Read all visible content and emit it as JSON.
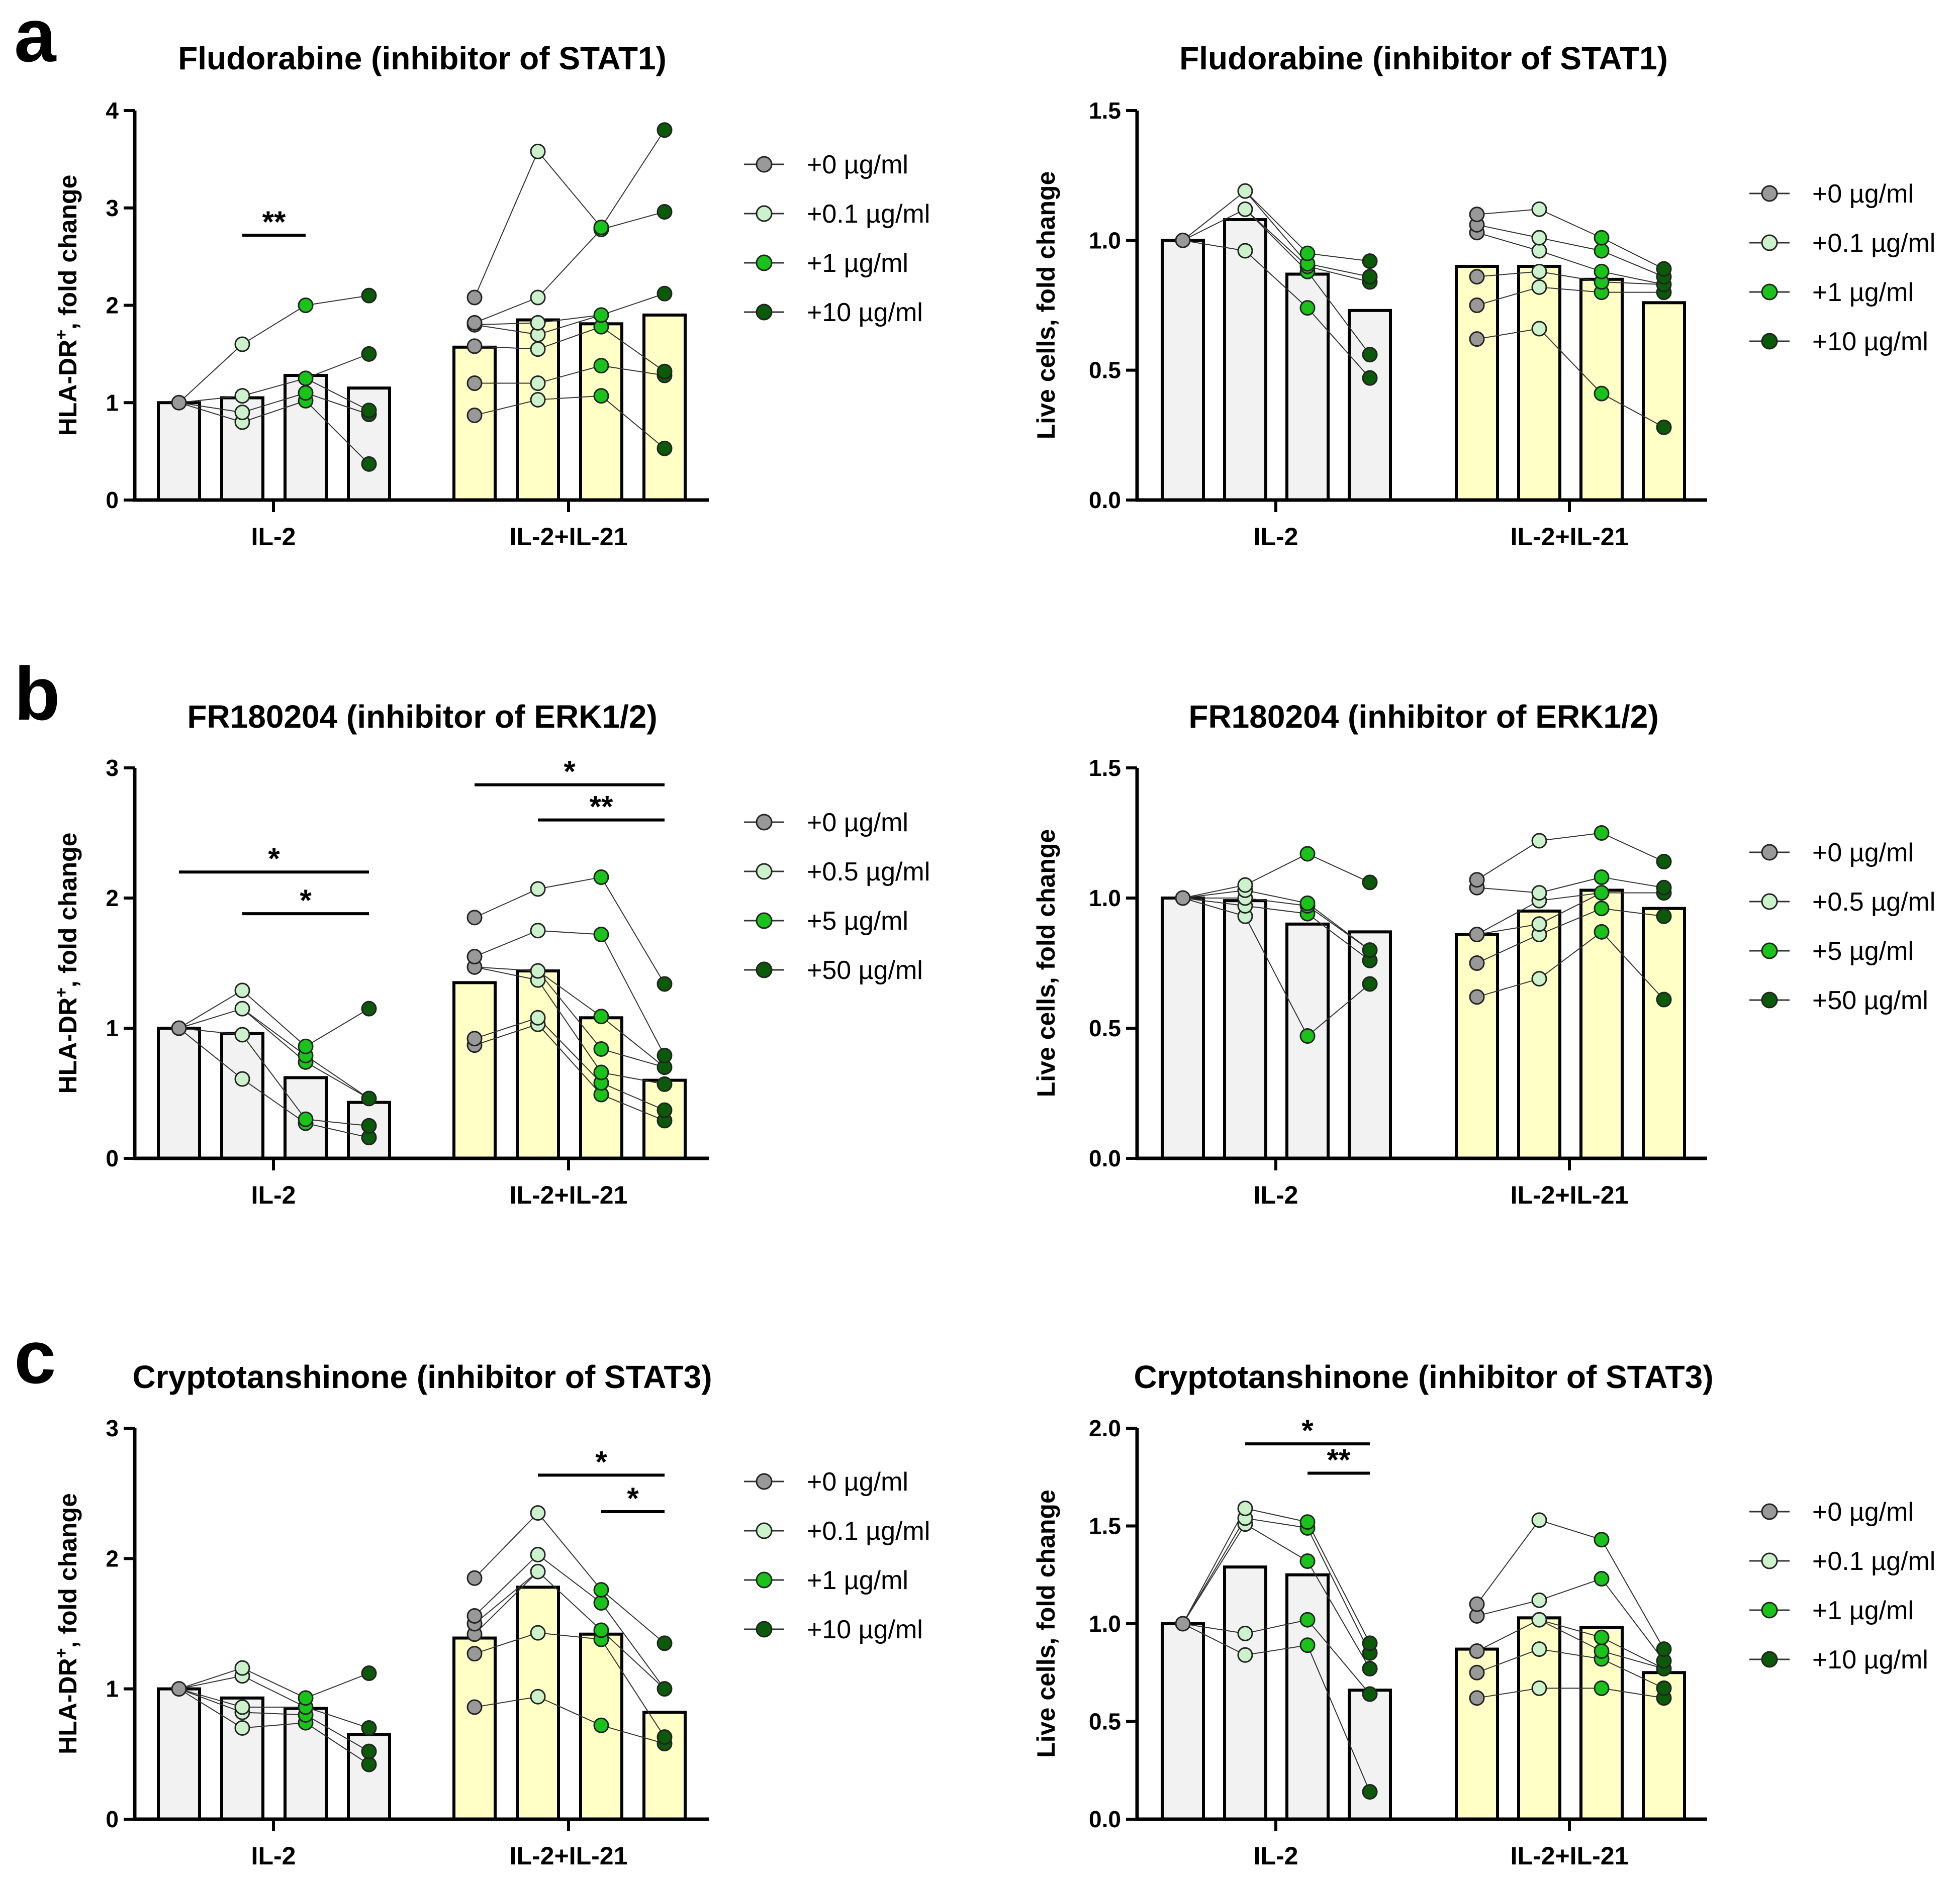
{
  "panels": [
    {
      "letter": "a"
    },
    {
      "letter": "b"
    },
    {
      "letter": "c"
    }
  ],
  "colors": {
    "bar_il2": "#f2f2f2",
    "bar_il21": "#ffffc6",
    "dose_0": "#999999",
    "dose_1": "#ccf2cc",
    "dose_2": "#1ac31a",
    "dose_3": "#0a5a0a",
    "stroke": "#000000"
  },
  "chart_data": [
    {
      "type": "bar",
      "title": "Fludorabine (inhibitor of STAT1)",
      "ylabel": "HLA-DR",
      "ylabel_sup": "+",
      "ylabel_rest": ", fold change",
      "ylim": [
        0,
        4
      ],
      "yticks": [
        "0",
        "1",
        "2",
        "3",
        "4"
      ],
      "categories": [
        "IL-2",
        "IL-2+IL-21"
      ],
      "legend": [
        "+0 µg/ml",
        "+0.1 µg/ml",
        "+1 µg/ml",
        "+10 µg/ml"
      ],
      "bar_means": [
        [
          1.0,
          1.05,
          1.28,
          1.15
        ],
        [
          1.57,
          1.85,
          1.81,
          1.9
        ]
      ],
      "points": [
        [
          [
            1.0
          ],
          [
            0.8,
            0.9,
            1.07,
            1.6
          ],
          [
            1.02,
            1.1,
            1.25,
            2.0
          ],
          [
            0.37,
            0.88,
            0.92,
            1.5,
            2.1
          ]
        ],
        [
          [
            0.87,
            1.2,
            1.58,
            1.8,
            1.82,
            2.08
          ],
          [
            1.03,
            1.2,
            1.55,
            1.7,
            1.82,
            2.08,
            3.58
          ],
          [
            1.07,
            1.38,
            1.78,
            1.9,
            2.78,
            2.8
          ],
          [
            0.53,
            1.28,
            1.32,
            2.12,
            2.96,
            3.8
          ]
        ]
      ],
      "significance": [
        {
          "group": 0,
          "from": 1,
          "to": 2,
          "level": 2.72,
          "label": "**"
        }
      ]
    },
    {
      "type": "bar",
      "title": "Fludorabine (inhibitor of STAT1)",
      "ylabel": "Live cells, fold change",
      "ylabel_sup": "",
      "ylabel_rest": "",
      "ylim": [
        0,
        1.5
      ],
      "yticks": [
        "0.0",
        "0.5",
        "1.0",
        "1.5"
      ],
      "categories": [
        "IL-2",
        "IL-2+IL-21"
      ],
      "legend": [
        "+0 µg/ml",
        "+0.1 µg/ml",
        "+1 µg/ml",
        "+10 µg/ml"
      ],
      "bar_means": [
        [
          1.0,
          1.08,
          0.87,
          0.73
        ],
        [
          0.9,
          0.9,
          0.85,
          0.76
        ]
      ],
      "points": [
        [
          [
            1.0
          ],
          [
            0.96,
            1.12,
            1.19
          ],
          [
            0.74,
            0.88,
            0.9,
            0.91,
            0.95
          ],
          [
            0.47,
            0.56,
            0.84,
            0.86,
            0.92
          ]
        ],
        [
          [
            0.62,
            0.75,
            0.86,
            1.03,
            1.06,
            1.1
          ],
          [
            0.66,
            0.82,
            0.88,
            0.96,
            1.01,
            1.12
          ],
          [
            0.41,
            0.8,
            0.84,
            0.88,
            0.96,
            1.01
          ],
          [
            0.28,
            0.8,
            0.83,
            0.86,
            0.89
          ]
        ]
      ],
      "significance": []
    },
    {
      "type": "bar",
      "title": "FR180204 (inhibitor of ERK1/2)",
      "ylabel": "HLA-DR",
      "ylabel_sup": "+",
      "ylabel_rest": ", fold change",
      "ylim": [
        0,
        3
      ],
      "yticks": [
        "0",
        "1",
        "2",
        "3"
      ],
      "categories": [
        "IL-2",
        "IL-2+IL-21"
      ],
      "legend": [
        "+0 µg/ml",
        "+0.5 µg/ml",
        "+5 µg/ml",
        "+50 µg/ml"
      ],
      "bar_means": [
        [
          1.0,
          0.96,
          0.62,
          0.43
        ],
        [
          1.35,
          1.44,
          1.08,
          0.6
        ]
      ],
      "points": [
        [
          [
            1.0
          ],
          [
            0.61,
            0.95,
            1.15,
            1.29
          ],
          [
            0.27,
            0.3,
            0.74,
            0.79,
            0.86
          ],
          [
            0.16,
            0.25,
            0.46,
            1.15
          ]
        ],
        [
          [
            0.87,
            0.92,
            1.47,
            1.55,
            1.85
          ],
          [
            1.03,
            1.08,
            1.37,
            1.44,
            1.75,
            2.07
          ],
          [
            0.49,
            0.58,
            0.66,
            0.84,
            1.09,
            1.72,
            2.16
          ],
          [
            0.29,
            0.37,
            0.57,
            0.7,
            0.79,
            1.34
          ]
        ]
      ],
      "significance": [
        {
          "group": 0,
          "from": 0,
          "to": 3,
          "level": 2.2,
          "label": "*"
        },
        {
          "group": 0,
          "from": 1,
          "to": 3,
          "level": 1.88,
          "label": "*"
        },
        {
          "group": 1,
          "from": 0,
          "to": 3,
          "level": 2.87,
          "label": "*"
        },
        {
          "group": 1,
          "from": 1,
          "to": 3,
          "level": 2.6,
          "label": "**"
        }
      ]
    },
    {
      "type": "bar",
      "title": "FR180204 (inhibitor of ERK1/2)",
      "ylabel": "Live cells, fold change",
      "ylabel_sup": "",
      "ylabel_rest": "",
      "ylim": [
        0,
        1.5
      ],
      "yticks": [
        "0.0",
        "0.5",
        "1.0",
        "1.5"
      ],
      "categories": [
        "IL-2",
        "IL-2+IL-21"
      ],
      "legend": [
        "+0 µg/ml",
        "+0.5 µg/ml",
        "+5 µg/ml",
        "+50 µg/ml"
      ],
      "bar_means": [
        [
          1.0,
          0.99,
          0.9,
          0.87
        ],
        [
          0.86,
          0.95,
          1.03,
          0.96
        ]
      ],
      "points": [
        [
          [
            1.0
          ],
          [
            0.93,
            0.97,
            1.0,
            1.03,
            1.05
          ],
          [
            0.47,
            0.94,
            0.97,
            0.98,
            1.17
          ],
          [
            0.67,
            0.76,
            0.8,
            1.06
          ]
        ],
        [
          [
            0.62,
            0.75,
            0.86,
            1.04,
            1.07
          ],
          [
            0.69,
            0.86,
            0.9,
            0.99,
            1.02,
            1.22
          ],
          [
            0.87,
            0.96,
            1.02,
            1.08,
            1.25
          ],
          [
            0.61,
            0.93,
            1.02,
            1.04,
            1.14
          ]
        ]
      ],
      "significance": []
    },
    {
      "type": "bar",
      "title": "Cryptotanshinone (inhibitor of STAT3)",
      "ylabel": "HLA-DR",
      "ylabel_sup": "+",
      "ylabel_rest": ", fold change",
      "ylim": [
        0,
        3
      ],
      "yticks": [
        "0",
        "1",
        "2",
        "3"
      ],
      "categories": [
        "IL-2",
        "IL-2+IL-21"
      ],
      "legend": [
        "+0 µg/ml",
        "+0.1 µg/ml",
        "+1 µg/ml",
        "+10 µg/ml"
      ],
      "bar_means": [
        [
          1.0,
          0.93,
          0.85,
          0.65
        ],
        [
          1.39,
          1.78,
          1.42,
          0.82
        ]
      ],
      "points": [
        [
          [
            1.0
          ],
          [
            0.7,
            0.82,
            0.86,
            1.1,
            1.16
          ],
          [
            0.74,
            0.8,
            0.86,
            0.93
          ],
          [
            0.42,
            0.52,
            0.7,
            1.12
          ]
        ],
        [
          [
            0.86,
            1.27,
            1.42,
            1.5,
            1.56,
            1.85
          ],
          [
            0.94,
            1.43,
            1.9,
            2.03,
            2.35
          ],
          [
            0.72,
            1.38,
            1.45,
            1.66,
            1.76
          ],
          [
            0.58,
            0.63,
            1.0,
            1.35
          ]
        ]
      ],
      "significance": [
        {
          "group": 1,
          "from": 1,
          "to": 3,
          "level": 2.64,
          "label": "*"
        },
        {
          "group": 1,
          "from": 2,
          "to": 3,
          "level": 2.36,
          "label": "*"
        }
      ]
    },
    {
      "type": "bar",
      "title": "Cryptotanshinone (inhibitor of STAT3)",
      "ylabel": "Live cells, fold change",
      "ylabel_sup": "",
      "ylabel_rest": "",
      "ylim": [
        0,
        2.0
      ],
      "yticks": [
        "0.0",
        "0.5",
        "1.0",
        "1.5",
        "2.0"
      ],
      "categories": [
        "IL-2",
        "IL-2+IL-21"
      ],
      "legend": [
        "+0 µg/ml",
        "+0.1 µg/ml",
        "+1 µg/ml",
        "+10 µg/ml"
      ],
      "bar_means": [
        [
          1.0,
          1.29,
          1.25,
          0.66
        ],
        [
          0.87,
          1.03,
          0.98,
          0.75
        ]
      ],
      "points": [
        [
          [
            1.0
          ],
          [
            0.84,
            0.95,
            1.51,
            1.54,
            1.59
          ],
          [
            0.89,
            1.02,
            1.32,
            1.49,
            1.52
          ],
          [
            0.14,
            0.64,
            0.77,
            0.85,
            0.9
          ]
        ],
        [
          [
            0.62,
            0.75,
            0.86,
            1.04,
            1.1
          ],
          [
            0.67,
            0.87,
            1.02,
            1.12,
            1.53
          ],
          [
            0.67,
            0.82,
            0.86,
            0.93,
            1.23,
            1.43
          ],
          [
            0.62,
            0.67,
            0.77,
            0.81,
            0.87
          ]
        ]
      ],
      "significance": [
        {
          "group": 0,
          "from": 1,
          "to": 3,
          "level": 1.92,
          "label": "*"
        },
        {
          "group": 0,
          "from": 2,
          "to": 3,
          "level": 1.77,
          "label": "**"
        }
      ]
    }
  ]
}
